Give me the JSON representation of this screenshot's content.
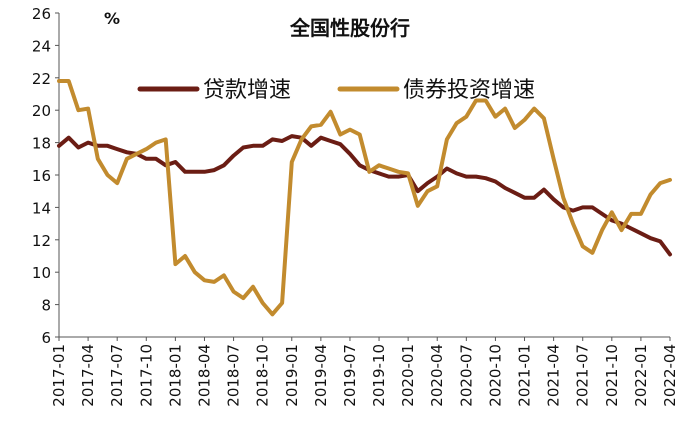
{
  "chart_data": {
    "type": "line",
    "title": "全国性股份行",
    "unit": "%",
    "ylim": [
      6,
      26
    ],
    "yticks": [
      6,
      8,
      10,
      12,
      14,
      16,
      18,
      20,
      22,
      24,
      26
    ],
    "grid": false,
    "legend_position": "top-left",
    "x": [
      "2017-01",
      "2017-02",
      "2017-03",
      "2017-04",
      "2017-05",
      "2017-06",
      "2017-07",
      "2017-08",
      "2017-09",
      "2017-10",
      "2017-11",
      "2017-12",
      "2018-01",
      "2018-02",
      "2018-03",
      "2018-04",
      "2018-05",
      "2018-06",
      "2018-07",
      "2018-08",
      "2018-09",
      "2018-10",
      "2018-11",
      "2018-12",
      "2019-01",
      "2019-02",
      "2019-03",
      "2019-04",
      "2019-05",
      "2019-06",
      "2019-07",
      "2019-08",
      "2019-09",
      "2019-10",
      "2019-11",
      "2019-12",
      "2020-01",
      "2020-02",
      "2020-03",
      "2020-04",
      "2020-05",
      "2020-06",
      "2020-07",
      "2020-08",
      "2020-09",
      "2020-10",
      "2020-11",
      "2020-12",
      "2021-01",
      "2021-02",
      "2021-03",
      "2021-04",
      "2021-05",
      "2021-06",
      "2021-07",
      "2021-08",
      "2021-09",
      "2021-10",
      "2021-11",
      "2021-12",
      "2022-01",
      "2022-02",
      "2022-03",
      "2022-04"
    ],
    "xtick_labels": [
      "2017-01",
      "2017-04",
      "2017-07",
      "2017-10",
      "2018-01",
      "2018-04",
      "2018-07",
      "2018-10",
      "2019-01",
      "2019-04",
      "2019-07",
      "2019-10",
      "2020-01",
      "2020-04",
      "2020-07",
      "2020-10",
      "2021-01",
      "2021-04",
      "2021-07",
      "2021-10",
      "2022-01",
      "2022-04"
    ],
    "series": [
      {
        "name": "贷款增速",
        "color": "#6b1d14",
        "values": [
          17.8,
          18.3,
          17.7,
          18.0,
          17.8,
          17.8,
          17.6,
          17.4,
          17.3,
          17.0,
          17.0,
          16.6,
          16.8,
          16.2,
          16.2,
          16.2,
          16.3,
          16.6,
          17.2,
          17.7,
          17.8,
          17.8,
          18.2,
          18.1,
          18.4,
          18.3,
          17.8,
          18.3,
          18.1,
          17.9,
          17.3,
          16.6,
          16.3,
          16.1,
          15.9,
          15.9,
          16.0,
          15.0,
          15.5,
          15.9,
          16.4,
          16.1,
          15.9,
          15.9,
          15.8,
          15.6,
          15.2,
          14.9,
          14.6,
          14.6,
          15.1,
          14.5,
          14.0,
          13.8,
          14.0,
          14.0,
          13.6,
          13.2,
          13.0,
          12.7,
          12.4,
          12.1,
          11.9,
          11.1
        ]
      },
      {
        "name": "债券投资增速",
        "color": "#c28b2e",
        "values": [
          21.8,
          21.8,
          20.0,
          20.1,
          17.0,
          16.0,
          15.5,
          17.0,
          17.3,
          17.6,
          18.0,
          18.2,
          10.5,
          11.0,
          10.0,
          9.5,
          9.4,
          9.8,
          8.8,
          8.4,
          9.1,
          8.1,
          7.4,
          8.1,
          16.8,
          18.2,
          19.0,
          19.1,
          19.9,
          18.5,
          18.8,
          18.5,
          16.2,
          16.6,
          16.4,
          16.2,
          16.1,
          14.1,
          15.0,
          15.3,
          18.2,
          19.2,
          19.6,
          20.6,
          20.6,
          19.6,
          20.1,
          18.9,
          19.4,
          20.1,
          19.5,
          17.0,
          14.6,
          13.0,
          11.6,
          11.2,
          12.6,
          13.7,
          12.6,
          13.6,
          13.6,
          14.8,
          15.5,
          15.7
        ]
      }
    ]
  }
}
